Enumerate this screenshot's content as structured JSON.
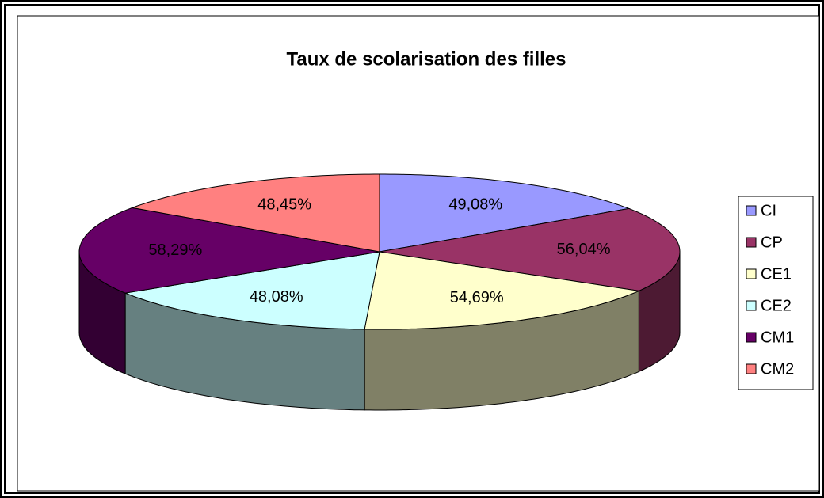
{
  "chart_data": {
    "type": "pie3d",
    "title": "Taux de scolarisation des filles",
    "categories": [
      "CI",
      "CP",
      "CE1",
      "CE2",
      "CM1",
      "CM2"
    ],
    "values": [
      49.08,
      56.04,
      54.69,
      48.08,
      58.29,
      48.45
    ],
    "value_labels": [
      "49,08%",
      "56,04%",
      "54,69%",
      "48,08%",
      "58,29%",
      "48,45%"
    ],
    "colors": [
      "#9999ff",
      "#993366",
      "#ffffcc",
      "#ccffff",
      "#660066",
      "#ff8080"
    ],
    "legend": "right"
  }
}
